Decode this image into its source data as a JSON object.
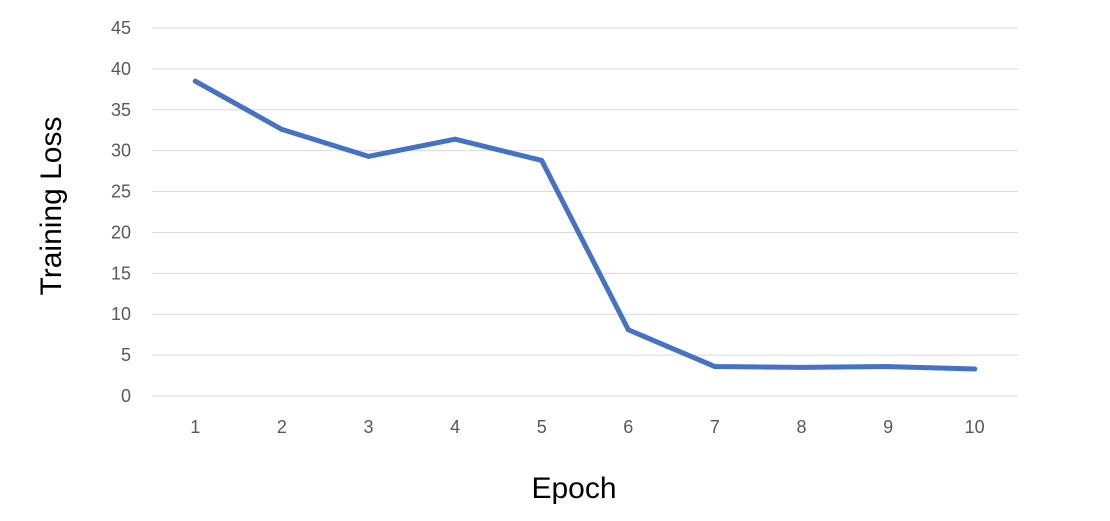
{
  "chart_data": {
    "type": "line",
    "title": "",
    "xlabel": "Epoch",
    "ylabel": "Training Loss",
    "categories": [
      "1",
      "2",
      "3",
      "4",
      "5",
      "6",
      "7",
      "8",
      "9",
      "10"
    ],
    "series": [
      {
        "values": [
          38.5,
          32.6,
          29.3,
          31.4,
          28.8,
          8.1,
          3.6,
          3.5,
          3.6,
          3.3
        ]
      }
    ],
    "ylim": [
      0,
      45
    ],
    "yticks": [
      "0",
      "5",
      "10",
      "15",
      "20",
      "25",
      "30",
      "35",
      "40",
      "45"
    ],
    "grid": true,
    "legend": "none",
    "colors": {
      "line": "#4472c4",
      "grid": "#d9d9d9",
      "tick_text": "#595959",
      "axis_title": "#000000"
    }
  }
}
